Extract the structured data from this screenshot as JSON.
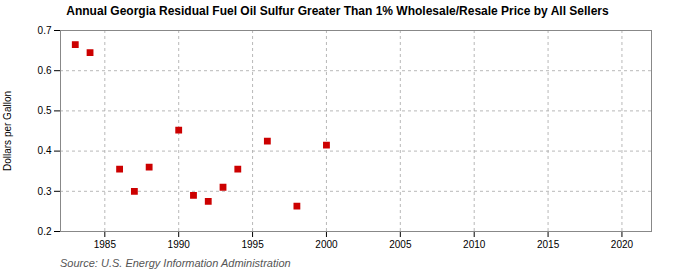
{
  "chart_data": {
    "type": "scatter",
    "title": "Annual Georgia Residual Fuel Oil Sulfur Greater Than 1% Wholesale/Resale Price by All Sellers",
    "ylabel": "Dollars per Gallon",
    "source": "Source: U.S. Energy Information Administration",
    "x": [
      1983,
      1984,
      1986,
      1987,
      1988,
      1990,
      1991,
      1992,
      1993,
      1994,
      1996,
      1998,
      2000
    ],
    "values": [
      0.665,
      0.645,
      0.355,
      0.3,
      0.36,
      0.452,
      0.29,
      0.275,
      0.31,
      0.355,
      0.425,
      0.263,
      0.415
    ],
    "color": "#cc0000",
    "marker": "square",
    "xlim": [
      1982,
      2022
    ],
    "ylim": [
      0.2,
      0.7
    ],
    "xticks": [
      1985,
      1990,
      1995,
      2000,
      2005,
      2010,
      2015,
      2020
    ],
    "yticks": [
      0.2,
      0.3,
      0.4,
      0.5,
      0.6,
      0.7
    ],
    "grid": true
  }
}
